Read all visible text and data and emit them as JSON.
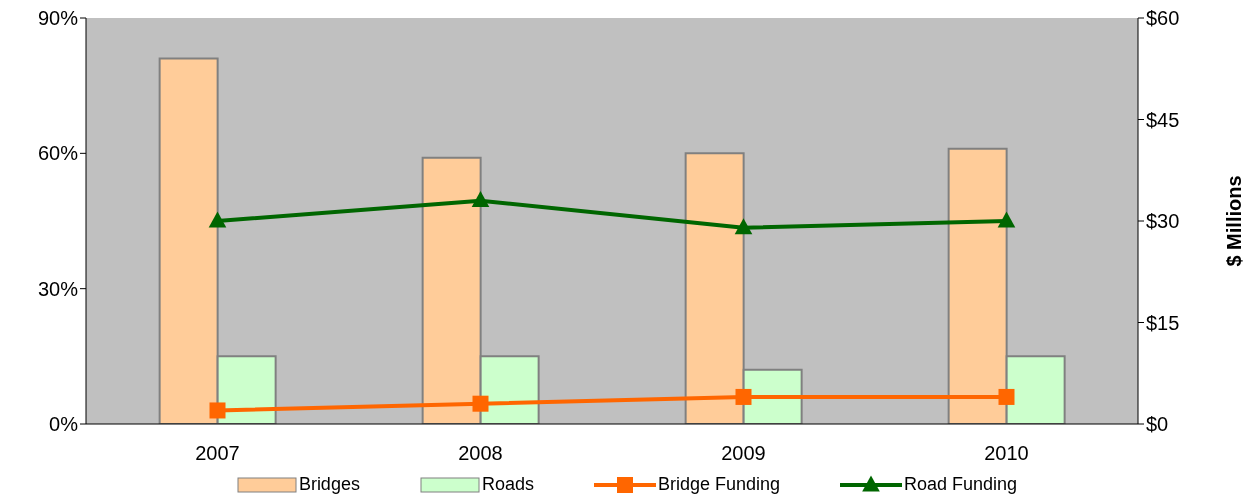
{
  "chart_data": {
    "type": "bar",
    "categories": [
      "2007",
      "2008",
      "2009",
      "2010"
    ],
    "series": [
      {
        "name": "Bridges",
        "color": "#ffcc99",
        "values": [
          81,
          59,
          60,
          61
        ]
      },
      {
        "name": "Roads",
        "color": "#ccffcc",
        "values": [
          15,
          15,
          12,
          15
        ]
      },
      {
        "name": "Bridge Funding",
        "type": "line",
        "axis": "y2",
        "color": "#ff6600",
        "marker": "square",
        "values": [
          2,
          3,
          4,
          4
        ]
      },
      {
        "name": "Road Funding",
        "type": "line",
        "axis": "y2",
        "color": "#006600",
        "marker": "triangle",
        "values": [
          30,
          33,
          29,
          30
        ]
      }
    ],
    "y2label": "$ Millions",
    "ylim": [
      0,
      90
    ],
    "yticks": [
      {
        "value": 0,
        "label": "0%"
      },
      {
        "value": 30,
        "label": "30%"
      },
      {
        "value": 60,
        "label": "60%"
      },
      {
        "value": 90,
        "label": "90%"
      }
    ],
    "y2lim": [
      0,
      60
    ],
    "y2ticks": [
      {
        "value": 0,
        "label": "$0"
      },
      {
        "value": 15,
        "label": "$15"
      },
      {
        "value": 30,
        "label": "$30"
      },
      {
        "value": 45,
        "label": "$45"
      },
      {
        "value": 60,
        "label": "$60"
      }
    ],
    "grid": false,
    "legend": "bottom"
  }
}
